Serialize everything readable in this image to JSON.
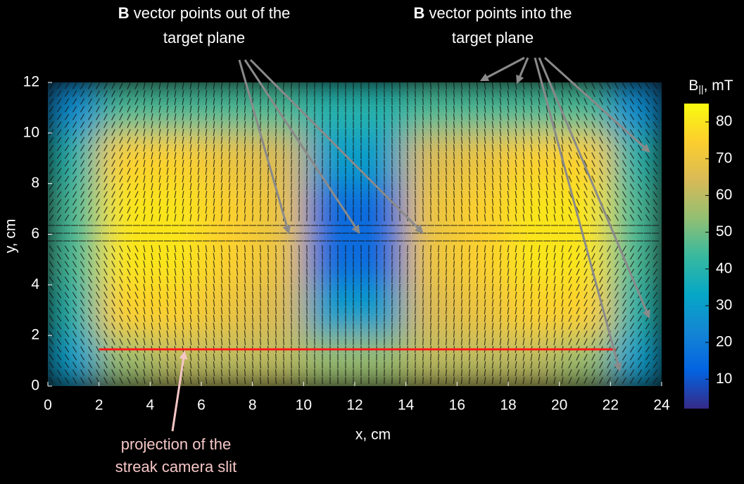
{
  "chart_data": {
    "type": "heatmap",
    "x_label": "x, cm",
    "y_label": "y, cm",
    "x": [
      1,
      3,
      5,
      7,
      9,
      11,
      13,
      15,
      17,
      19,
      21,
      23
    ],
    "y": [
      1,
      3,
      5,
      7,
      9,
      11
    ],
    "z": [
      [
        30,
        55,
        60,
        60,
        60,
        55,
        55,
        60,
        60,
        60,
        55,
        30
      ],
      [
        40,
        75,
        75,
        70,
        65,
        30,
        30,
        65,
        70,
        75,
        75,
        40
      ],
      [
        45,
        80,
        80,
        75,
        70,
        15,
        15,
        70,
        75,
        80,
        80,
        45
      ],
      [
        45,
        80,
        80,
        75,
        70,
        15,
        15,
        70,
        75,
        80,
        80,
        45
      ],
      [
        40,
        75,
        75,
        70,
        65,
        30,
        30,
        65,
        70,
        75,
        75,
        40
      ],
      [
        25,
        45,
        45,
        45,
        45,
        40,
        40,
        45,
        45,
        45,
        45,
        25
      ]
    ],
    "xlim": [
      0,
      24
    ],
    "ylim": [
      0,
      12
    ],
    "xticks": [
      0,
      2,
      4,
      6,
      8,
      10,
      12,
      14,
      16,
      18,
      20,
      22,
      24
    ],
    "yticks": [
      0,
      2,
      4,
      6,
      8,
      10,
      12
    ],
    "colormap": "parula",
    "zlim": [
      2,
      85
    ],
    "zticks": [
      10,
      20,
      30,
      40,
      50,
      60,
      70,
      80
    ],
    "colorbar_label": {
      "symbol": "B",
      "subscript": "||",
      "unit": ", mT"
    },
    "slit_line": {
      "x": [
        2,
        22.2
      ],
      "y": [
        1.45,
        1.45
      ],
      "color": "#ff1a1a"
    },
    "annotations": [
      {
        "bold": "B",
        "lines": [
          "vector points out of the",
          "target plane"
        ]
      },
      {
        "bold": "B",
        "lines": [
          "vector points into the",
          "target plane"
        ]
      },
      {
        "lines": [
          "projection of the",
          "streak camera slit"
        ]
      }
    ]
  }
}
